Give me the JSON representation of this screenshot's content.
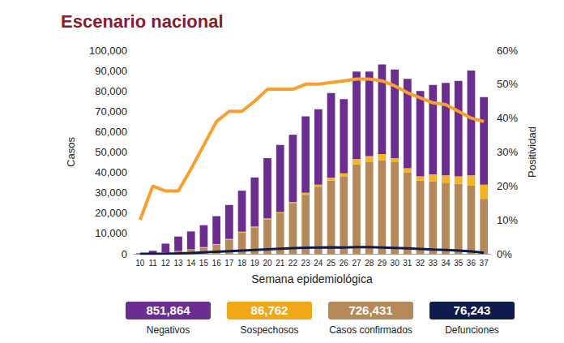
{
  "chart_data": {
    "type": "bar",
    "title": "Escenario nacional",
    "x_label": "Semana epidemiológica",
    "y_label": "Casos",
    "y2_label": "Positividad",
    "categories": [
      "10",
      "11",
      "12",
      "13",
      "14",
      "15",
      "16",
      "17",
      "18",
      "19",
      "20",
      "21",
      "22",
      "23",
      "24",
      "25",
      "26",
      "27",
      "28",
      "29",
      "30",
      "31",
      "32",
      "33",
      "34",
      "35",
      "36",
      "37"
    ],
    "stacked": true,
    "grid": false,
    "series": [
      {
        "name": "Casos confirmados",
        "type": "bar",
        "color": "#b5895a",
        "values": [
          50,
          200,
          600,
          1200,
          2000,
          3000,
          4500,
          7000,
          10500,
          13000,
          17000,
          20000,
          25000,
          29000,
          33000,
          36000,
          38000,
          44000,
          45000,
          46000,
          45000,
          40000,
          36000,
          35500,
          35000,
          34500,
          33500,
          27000
        ]
      },
      {
        "name": "Sospechosos",
        "type": "bar",
        "color": "#f5b324",
        "values": [
          20,
          50,
          100,
          150,
          200,
          250,
          300,
          300,
          350,
          400,
          400,
          450,
          500,
          1000,
          1000,
          1500,
          1500,
          2500,
          3000,
          3000,
          2000,
          2000,
          2000,
          3500,
          3500,
          3500,
          5000,
          7000
        ]
      },
      {
        "name": "Negativos",
        "type": "bar",
        "color": "#6b2d8f",
        "values": [
          230,
          1250,
          4300,
          7150,
          8800,
          10750,
          13700,
          16700,
          20150,
          24100,
          29600,
          33050,
          33000,
          37500,
          37000,
          41500,
          36500,
          43000,
          41500,
          44000,
          43500,
          44000,
          42000,
          44000,
          45500,
          47000,
          51500,
          43000
        ]
      },
      {
        "name": "Defunciones",
        "type": "line",
        "color": "#0f1b4a",
        "values": [
          0,
          0,
          50,
          150,
          400,
          700,
          1000,
          1300,
          1600,
          1900,
          2200,
          2500,
          2800,
          3000,
          3100,
          3200,
          3100,
          3300,
          3300,
          3100,
          2900,
          2700,
          2400,
          2100,
          1900,
          1600,
          1200,
          500
        ]
      },
      {
        "name": "Positividad",
        "type": "line",
        "axis": "y2",
        "color": "#f7a02f",
        "values": [
          10,
          20,
          18.5,
          18.5,
          25,
          32,
          39,
          42,
          42,
          45,
          48.5,
          48.5,
          48.5,
          50,
          50,
          50.5,
          51,
          51.5,
          51.5,
          51,
          49.5,
          47.5,
          46,
          44.5,
          44,
          42,
          40,
          39
        ]
      }
    ],
    "ylim": [
      0,
      100000
    ],
    "yticks": [
      0,
      {
        "value": 10000,
        "label": "10,000"
      },
      {
        "value": 20000,
        "label": "20,000"
      },
      {
        "value": 30000,
        "label": "30,000"
      },
      {
        "value": 40000,
        "label": "40,000"
      },
      {
        "value": 50000,
        "label": "50,000"
      },
      {
        "value": 60000,
        "label": "60,000"
      },
      {
        "value": 70000,
        "label": "70,000"
      },
      {
        "value": 80000,
        "label": "80,000"
      },
      {
        "value": 90000,
        "label": "90,000"
      },
      {
        "value": 100000,
        "label": "100,000"
      }
    ],
    "y2lim": [
      0,
      60
    ],
    "y2ticks": [
      {
        "value": 0,
        "label": "0%"
      },
      {
        "value": 10,
        "label": "10%"
      },
      {
        "value": 20,
        "label": "20%"
      },
      {
        "value": 30,
        "label": "30%"
      },
      {
        "value": 40,
        "label": "40%"
      },
      {
        "value": 50,
        "label": "50%"
      },
      {
        "value": 60,
        "label": "60%"
      }
    ]
  },
  "summary": [
    {
      "label": "Negativos",
      "value": "851,864",
      "color": "#6b2d8f"
    },
    {
      "label": "Sospechosos",
      "value": "86,762",
      "color": "#f0a818"
    },
    {
      "label": "Casos confirmados",
      "value": "726,431",
      "color": "#b5895a"
    },
    {
      "label": "Defunciones",
      "value": "76,243",
      "color": "#0f1b4a"
    }
  ]
}
